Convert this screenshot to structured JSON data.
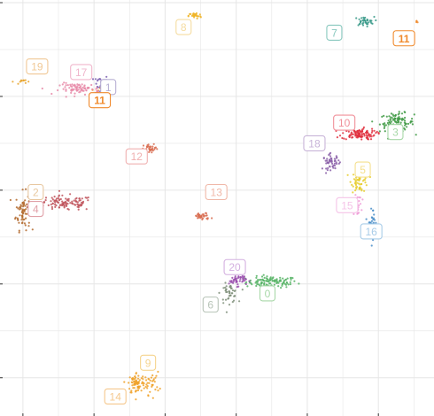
{
  "chart_data": {
    "type": "scatter",
    "title": "",
    "xlabel": "",
    "ylabel": "",
    "grid": true,
    "legend": "none",
    "xlim": [
      -11.3,
      18.6
    ],
    "ylim": [
      -1.9,
      20.0
    ],
    "clusters": [
      {
        "id": "0",
        "label": "0",
        "color": "#55b364",
        "x": 7.5,
        "y": 5.1,
        "sx": 0.9,
        "sy": 0.15,
        "n": 110
      },
      {
        "id": "1",
        "label": "1",
        "color": "#7b5fb0",
        "x": -4.5,
        "y": 15.6,
        "sx": 0.25,
        "sy": 0.3,
        "n": 45
      },
      {
        "id": "2",
        "label": "2",
        "color": "#b36a2e",
        "x": -10.0,
        "y": 8.9,
        "sx": 0.25,
        "sy": 0.5,
        "n": 70
      },
      {
        "id": "3",
        "label": "3",
        "color": "#3f9a44",
        "x": 16.3,
        "y": 13.6,
        "sx": 0.6,
        "sy": 0.25,
        "n": 110
      },
      {
        "id": "4",
        "label": "4",
        "color": "#c0545c",
        "x": -7.0,
        "y": 9.3,
        "sx": 1.0,
        "sy": 0.2,
        "n": 110
      },
      {
        "id": "5",
        "label": "5",
        "color": "#e6cc2e",
        "x": 13.7,
        "y": 10.5,
        "sx": 0.3,
        "sy": 0.3,
        "n": 55
      },
      {
        "id": "6",
        "label": "6",
        "color": "#7f8f7a",
        "x": 4.5,
        "y": 4.5,
        "sx": 0.3,
        "sy": 0.25,
        "n": 45
      },
      {
        "id": "7",
        "label": "7",
        "color": "#3a9a8a",
        "x": 14.0,
        "y": 19.0,
        "sx": 0.35,
        "sy": 0.12,
        "n": 40
      },
      {
        "id": "8",
        "label": "8",
        "color": "#f0b529",
        "x": 2.1,
        "y": 19.3,
        "sx": 0.22,
        "sy": 0.08,
        "n": 30
      },
      {
        "id": "9",
        "label": "9",
        "color": "#f0a22a",
        "x": -2.0,
        "y": -0.3,
        "sx": 0.3,
        "sy": 0.3,
        "n": 70
      },
      {
        "id": "10",
        "label": "10",
        "color": "#e0303e",
        "x": 13.6,
        "y": 13.0,
        "sx": 0.6,
        "sy": 0.15,
        "n": 110
      },
      {
        "id": "11",
        "label": "11",
        "color": "#f08a2c",
        "x": -4.5,
        "y": 15.0,
        "sx": 0.3,
        "sy": 0.25,
        "n": 55
      },
      {
        "id": "12",
        "label": "12",
        "color": "#d86c50",
        "x": -1.0,
        "y": 12.2,
        "sx": 0.25,
        "sy": 0.12,
        "n": 30
      },
      {
        "id": "13",
        "label": "13",
        "color": "#d86c50",
        "x": 2.6,
        "y": 8.6,
        "sx": 0.3,
        "sy": 0.1,
        "n": 35
      },
      {
        "id": "14",
        "label": "14",
        "color": "#f0a22a",
        "x": -1.0,
        "y": -0.3,
        "sx": 0.3,
        "sy": 0.3,
        "n": 35
      },
      {
        "id": "15",
        "label": "15",
        "color": "#ee9ad6",
        "x": 13.5,
        "y": 9.2,
        "sx": 0.15,
        "sy": 0.25,
        "n": 30
      },
      {
        "id": "16",
        "label": "16",
        "color": "#4a8ec8",
        "x": 14.6,
        "y": 8.3,
        "sx": 0.15,
        "sy": 0.4,
        "n": 30
      },
      {
        "id": "17",
        "label": "17",
        "color": "#e88aa8",
        "x": -6.0,
        "y": 15.4,
        "sx": 0.7,
        "sy": 0.15,
        "n": 80
      },
      {
        "id": "18",
        "label": "18",
        "color": "#8a5fa8",
        "x": 11.7,
        "y": 11.5,
        "sx": 0.3,
        "sy": 0.2,
        "n": 50
      },
      {
        "id": "19",
        "label": "19",
        "color": "#e8a52e",
        "x": -10.0,
        "y": 15.8,
        "sx": 0.3,
        "sy": 0.06,
        "n": 12
      },
      {
        "id": "20",
        "label": "20",
        "color": "#9a4fae",
        "x": 5.1,
        "y": 5.2,
        "sx": 0.3,
        "sy": 0.15,
        "n": 50
      },
      {
        "id": "11b",
        "label": "11",
        "color": "#f08a2c",
        "x": 17.7,
        "y": 19.0,
        "sx": 0.04,
        "sy": 0.03,
        "n": 4
      }
    ],
    "labels": [
      {
        "text": "19",
        "color": "#f0c896",
        "bold": false,
        "x": -9.0,
        "y": 16.6
      },
      {
        "text": "17",
        "color": "#f0b6cc",
        "bold": false,
        "x": -5.9,
        "y": 16.3
      },
      {
        "text": "1",
        "color": "#b8b0d4",
        "bold": false,
        "x": -4.0,
        "y": 15.5
      },
      {
        "text": "11",
        "color": "#f08a2c",
        "bold": true,
        "x": -4.6,
        "y": 14.8
      },
      {
        "text": "12",
        "color": "#f0b0b0",
        "bold": false,
        "x": -2.0,
        "y": 11.8
      },
      {
        "text": "2",
        "color": "#e8c8a0",
        "bold": false,
        "x": -9.1,
        "y": 9.9
      },
      {
        "text": "4",
        "color": "#e0a0a8",
        "bold": false,
        "x": -9.1,
        "y": 9.0
      },
      {
        "text": "13",
        "color": "#f0b8a8",
        "bold": false,
        "x": 3.6,
        "y": 9.9
      },
      {
        "text": "8",
        "color": "#f5dca0",
        "bold": false,
        "x": 1.3,
        "y": 18.7
      },
      {
        "text": "7",
        "color": "#88c8be",
        "bold": false,
        "x": 11.9,
        "y": 18.4
      },
      {
        "text": "11",
        "color": "#f08a2c",
        "bold": true,
        "x": 16.8,
        "y": 18.1
      },
      {
        "text": "10",
        "color": "#f0909a",
        "bold": false,
        "x": 12.6,
        "y": 13.6
      },
      {
        "text": "3",
        "color": "#a8d8a8",
        "bold": false,
        "x": 16.2,
        "y": 13.1
      },
      {
        "text": "18",
        "color": "#c8b4d8",
        "bold": false,
        "x": 10.5,
        "y": 12.5
      },
      {
        "text": "5",
        "color": "#f5e08e",
        "bold": false,
        "x": 13.9,
        "y": 11.1
      },
      {
        "text": "15",
        "color": "#f5c4e8",
        "bold": false,
        "x": 12.8,
        "y": 9.2
      },
      {
        "text": "16",
        "color": "#a8cce8",
        "bold": false,
        "x": 14.5,
        "y": 7.8
      },
      {
        "text": "20",
        "color": "#d4b0e0",
        "bold": false,
        "x": 4.9,
        "y": 5.9
      },
      {
        "text": "0",
        "color": "#a8d8a8",
        "bold": false,
        "x": 7.2,
        "y": 4.5
      },
      {
        "text": "6",
        "color": "#b8c4b8",
        "bold": false,
        "x": 3.2,
        "y": 3.9
      },
      {
        "text": "9",
        "color": "#f5d48e",
        "bold": false,
        "x": -1.2,
        "y": 0.8
      },
      {
        "text": "14",
        "color": "#f5c88e",
        "bold": false,
        "x": -3.5,
        "y": -1.0
      }
    ]
  },
  "colors": {
    "background": "#ffffff",
    "grid": "#e6e6e6",
    "axis_tick": "#333333"
  }
}
